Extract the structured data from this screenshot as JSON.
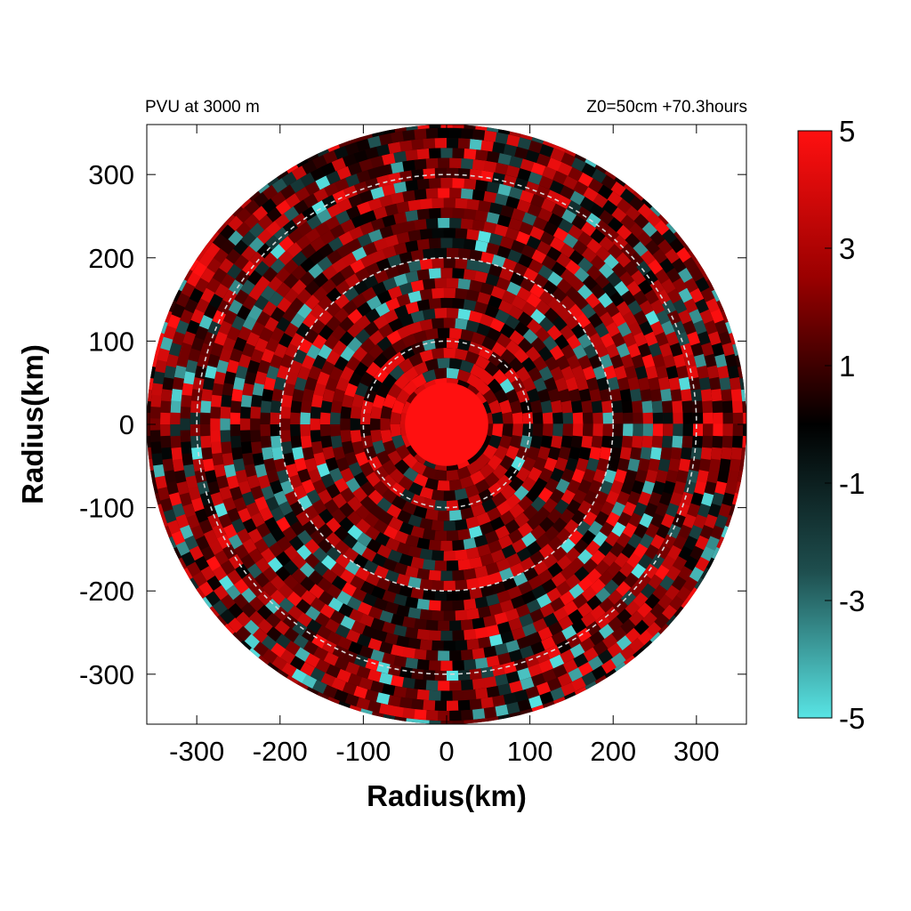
{
  "chart_data": {
    "type": "heatmap",
    "title_left": "PVU at  3000 m",
    "title_right": "Z0=50cm  +70.3hours",
    "xlabel": "Radius(km)",
    "ylabel": "Radius(km)",
    "xlim": [
      -360,
      360
    ],
    "ylim": [
      -360,
      360
    ],
    "xticks": [
      -300,
      -200,
      -100,
      0,
      100,
      200,
      300
    ],
    "yticks": [
      300,
      200,
      100,
      0,
      -100,
      -200,
      -300
    ],
    "xtick_labels": [
      "-300",
      "-200",
      "-100",
      "0",
      "100",
      "200",
      "300"
    ],
    "ytick_labels": [
      "300",
      "200",
      "100",
      "0",
      "-100",
      "-200",
      "-300"
    ],
    "domain_radius_km": 360,
    "reference_circles_km": [
      100,
      200,
      300
    ],
    "core_radius_km": 50,
    "colorbar": {
      "min": -5,
      "max": 5,
      "ticks": [
        5,
        3,
        1,
        -1,
        -3,
        -5
      ],
      "tick_labels": [
        "5",
        "3",
        "1",
        "-1",
        "-3",
        "-5"
      ],
      "colors": {
        "max": "#ff1010",
        "mid_high": "#7a0000",
        "zero": "#000000",
        "mid_low": "#1e4e4e",
        "min": "#58e4e4"
      }
    },
    "grid": false,
    "legend": "colorbar-right"
  }
}
